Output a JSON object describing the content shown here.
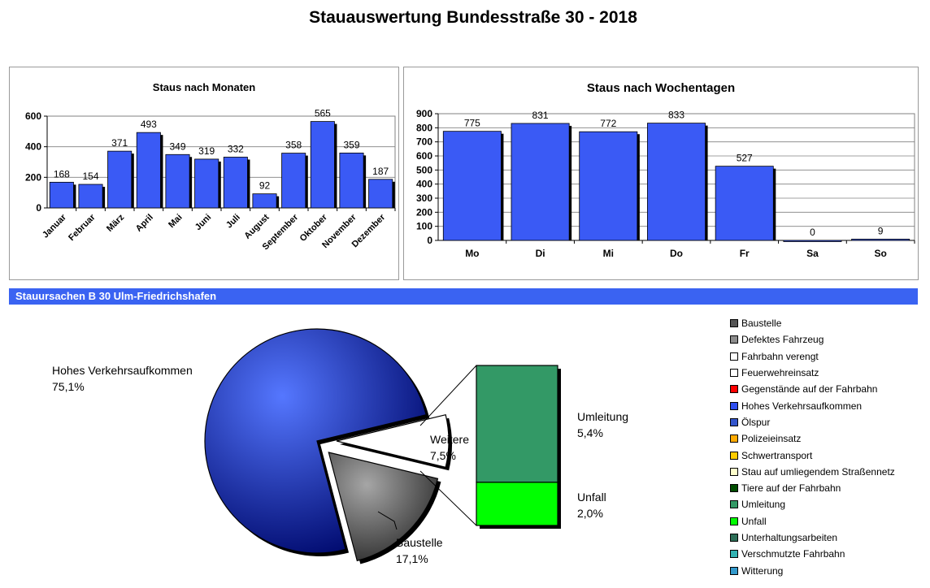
{
  "title": "Stauauswertung Bundesstraße 30 - 2018",
  "chart_data": [
    {
      "type": "bar",
      "title": "Staus nach Monaten",
      "categories": [
        "Januar",
        "Februar",
        "März",
        "April",
        "Mai",
        "Juni",
        "Juli",
        "August",
        "September",
        "Oktober",
        "November",
        "Dezember"
      ],
      "values": [
        168,
        154,
        371,
        493,
        349,
        319,
        332,
        92,
        358,
        565,
        359,
        187
      ],
      "ylim": [
        0,
        600
      ],
      "yticks": [
        0,
        200,
        400,
        600
      ],
      "grid": true,
      "color": "#3a5af5"
    },
    {
      "type": "bar",
      "title": "Staus nach Wochentagen",
      "categories": [
        "Mo",
        "Di",
        "Mi",
        "Do",
        "Fr",
        "Sa",
        "So"
      ],
      "values": [
        775,
        831,
        772,
        833,
        527,
        0,
        9
      ],
      "ylim": [
        0,
        900
      ],
      "yticks": [
        0,
        100,
        200,
        300,
        400,
        500,
        600,
        700,
        800,
        900
      ],
      "grid": true,
      "color": "#3a5af5"
    },
    {
      "type": "pie",
      "title": "Stauursachen B 30 Ulm-Friedrichshafen",
      "slices": [
        {
          "label": "Hohes Verkehrsaufkommen",
          "value_label": "75,1%",
          "value": 75.1,
          "color": "#2f4ff0"
        },
        {
          "label": "Baustelle",
          "value_label": "17,1%",
          "value": 17.1,
          "color": "#707070"
        },
        {
          "label": "Weitere",
          "value_label": "7,5%",
          "value": 7.5,
          "color": "#ffffff"
        }
      ],
      "breakdown": [
        {
          "label": "Umleitung",
          "value_label": "5,4%",
          "value": 5.4,
          "color": "#339966"
        },
        {
          "label": "Unfall",
          "value_label": "2,0%",
          "value": 2.0,
          "color": "#00ff00"
        }
      ],
      "legend": [
        {
          "label": "Baustelle",
          "color": "#555555"
        },
        {
          "label": "Defektes Fahrzeug",
          "color": "#8c8c8c"
        },
        {
          "label": "Fahrbahn verengt",
          "color": "#ffffff"
        },
        {
          "label": "Feuerwehreinsatz",
          "color": "#ffffff"
        },
        {
          "label": "Gegenstände auf der Fahrbahn",
          "color": "#ff0000"
        },
        {
          "label": "Hohes Verkehrsaufkommen",
          "color": "#2f4ff0"
        },
        {
          "label": "Ölspur",
          "color": "#3355cc"
        },
        {
          "label": "Polizeieinsatz",
          "color": "#ffaa00"
        },
        {
          "label": "Schwertransport",
          "color": "#ffcc00"
        },
        {
          "label": "Stau auf umliegendem Straßennetz",
          "color": "#ffffcc"
        },
        {
          "label": "Tiere auf der Fahrbahn",
          "color": "#004d00"
        },
        {
          "label": "Umleitung",
          "color": "#339966"
        },
        {
          "label": "Unfall",
          "color": "#00ff00"
        },
        {
          "label": "Unterhaltungsarbeiten",
          "color": "#2d6e57"
        },
        {
          "label": "Verschmutzte Fahrbahn",
          "color": "#33b3b3"
        },
        {
          "label": "Witterung",
          "color": "#3399cc"
        }
      ]
    }
  ]
}
